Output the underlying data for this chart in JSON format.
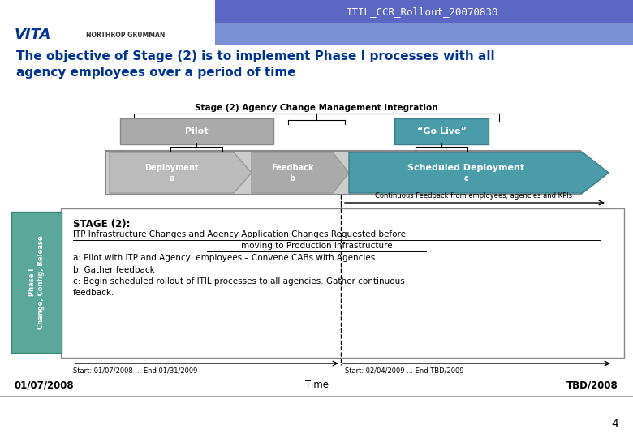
{
  "title_bar_text": "ITIL_CCR_Rollout_20070830",
  "title_bar_color": "#5B67C2",
  "title_bar_text_color": "#FFFFFF",
  "header_bg": "#FFFFFF",
  "main_title": "The objective of Stage (2) is to implement Phase I processes with all\nagency employees over a period of time",
  "main_title_color": "#003399",
  "stage_label": "Stage (2) Agency Change Management Integration",
  "pilot_label": "Pilot",
  "pilot_color": "#AAAAAA",
  "golive_label": "“Go Live”",
  "golive_color": "#4A9DA8",
  "arrow_ab_color": "#BBBBBB",
  "arrow_c_color": "#4A9DA8",
  "feedback_arrow_text": "Continuous Feedback from employees, agencies and KPIs",
  "stage2_header": "STAGE (2):",
  "stage2_line1": "ITP Infrastructure Changes and Agency Application Changes Requested before",
  "stage2_line2": "moving to Production Infrastructure",
  "stage2_line3": "a: Pilot with ITP and Agency  employees – Convene CABs with Agencies",
  "stage2_line4": "b: Gather feedback",
  "stage2_line5a": "c: Begin scheduled rollout of ITIL processes to all agencies. Gather continuous",
  "stage2_line5b": "feedback.",
  "phase_label": "Phase I\nChange, Config, Release",
  "phase_color": "#5BA89A",
  "date_start_label": "Start: 01/07/2008 ... End 01/31/2009",
  "date_start2_label": "Start: 02/04/2009 ... End TBD/2009",
  "bottom_left": "01/07/2008",
  "bottom_center": "Time",
  "bottom_right": "TBD/2008",
  "page_num": "4",
  "bg_color": "#FFFFFF"
}
